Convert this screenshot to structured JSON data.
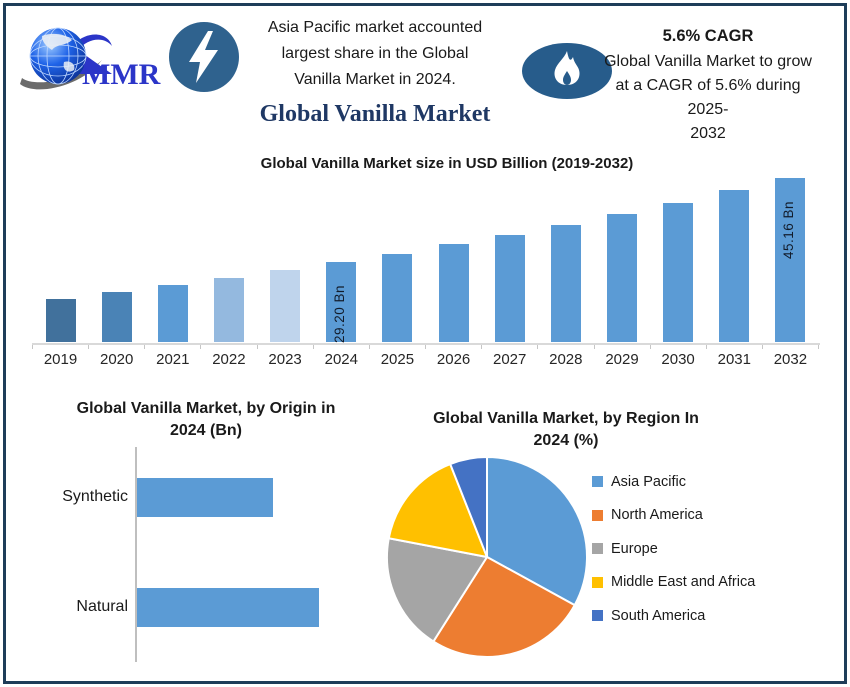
{
  "header": {
    "logo": {
      "brand": "MMR"
    },
    "highlight1": {
      "lines": [
        "Asia Pacific market accounted",
        "largest share in the Global",
        "Vanilla Market in 2024."
      ]
    },
    "highlight2": {
      "title": "5.6% CAGR",
      "lines": [
        "Global Vanilla Market to grow",
        "at a CAGR of 5.6% during 2025-",
        "2032"
      ]
    },
    "page_title": "Global Vanilla Market"
  },
  "colors": {
    "accent_blue": "#5B9BD5",
    "dark_navy": "#1F3864",
    "badge_blue": "#2F628E",
    "flame_badge_blue": "#275C8B",
    "frame_border": "#1E3D59",
    "axis_gray": "#D9D9D9"
  },
  "chart_data": [
    {
      "id": "market_size",
      "type": "bar",
      "title": "Global Vanilla Market size in USD Billion (2019-2032)",
      "categories": [
        "2019",
        "2020",
        "2021",
        "2022",
        "2023",
        "2024",
        "2025",
        "2026",
        "2027",
        "2028",
        "2029",
        "2030",
        "2031",
        "2032"
      ],
      "values": [
        22.2,
        23.5,
        24.8,
        26.2,
        27.7,
        29.2,
        30.8,
        32.6,
        34.4,
        36.3,
        38.4,
        40.5,
        42.8,
        45.16
      ],
      "values_estimated_except_labeled": true,
      "unit": "USD Billion",
      "data_labels": {
        "2024": "29.20 Bn",
        "2032": "45.16 Bn"
      },
      "bar_colors": [
        "#41719C",
        "#4A83B6",
        "#5B9BD5",
        "#94B9DF",
        "#BFD4EC",
        "#5B9BD5",
        "#5B9BD5",
        "#5B9BD5",
        "#5B9BD5",
        "#5B9BD5",
        "#5B9BD5",
        "#5B9BD5",
        "#5B9BD5",
        "#5B9BD5"
      ],
      "ylabel": "",
      "xlabel": "",
      "grid": false,
      "render_baseline_value": 14
    },
    {
      "id": "by_origin",
      "type": "bar",
      "orientation": "horizontal",
      "title": "Global Vanilla Market, by Origin in 2024 (Bn)",
      "title_lines": [
        "Global Vanilla Market, by Origin in",
        "2024 (Bn)"
      ],
      "categories": [
        "Synthetic",
        "Natural"
      ],
      "values": [
        12.5,
        16.7
      ],
      "values_estimated": true,
      "unit": "Bn",
      "bar_color": "#5B9BD5",
      "grid": false
    },
    {
      "id": "by_region",
      "type": "pie",
      "title": "Global Vanilla Market, by Region In 2024 (%)",
      "title_lines": [
        "Global Vanilla Market, by Region In",
        "2024 (%)"
      ],
      "labels": [
        "Asia Pacific",
        "North America",
        "Europe",
        "Middle East and Africa",
        "South America"
      ],
      "values": [
        33,
        26,
        19,
        16,
        6
      ],
      "values_estimated": true,
      "colors": [
        "#5B9BD5",
        "#ED7D31",
        "#A5A5A5",
        "#FFC000",
        "#4472C4"
      ],
      "legend_position": "right",
      "start_angle_deg": 0,
      "direction": "clockwise"
    }
  ]
}
